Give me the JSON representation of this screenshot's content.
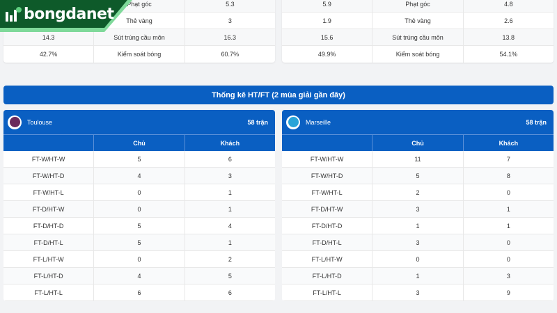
{
  "brand": {
    "name": "bongdanet"
  },
  "left_stats": [
    [
      "",
      "Phạt góc",
      "5.3"
    ],
    [
      "",
      "Thẻ vàng",
      "3"
    ],
    [
      "14.3",
      "Sút trúng cầu môn",
      "16.3"
    ],
    [
      "42.7%",
      "Kiểm soát bóng",
      "60.7%"
    ]
  ],
  "right_stats": [
    [
      "5.9",
      "Phạt góc",
      "4.8"
    ],
    [
      "1.9",
      "Thẻ vàng",
      "2.6"
    ],
    [
      "15.6",
      "Sút trúng cầu môn",
      "13.8"
    ],
    [
      "49.9%",
      "Kiểm soát bóng",
      "54.1%"
    ]
  ],
  "htft_title": "Thống kê HT/FT (2 mùa giải gần đây)",
  "columns": [
    "",
    "Chủ",
    "Khách"
  ],
  "teams": [
    {
      "name": "Toulouse",
      "matches": "58 trận",
      "logo_color": "#6b2a5c",
      "rows": [
        [
          "FT-W/HT-W",
          "5",
          "6"
        ],
        [
          "FT-W/HT-D",
          "4",
          "3"
        ],
        [
          "FT-W/HT-L",
          "0",
          "1"
        ],
        [
          "FT-D/HT-W",
          "0",
          "1"
        ],
        [
          "FT-D/HT-D",
          "5",
          "4"
        ],
        [
          "FT-D/HT-L",
          "5",
          "1"
        ],
        [
          "FT-L/HT-W",
          "0",
          "2"
        ],
        [
          "FT-L/HT-D",
          "4",
          "5"
        ],
        [
          "FT-L/HT-L",
          "6",
          "6"
        ]
      ]
    },
    {
      "name": "Marseille",
      "matches": "58 trận",
      "logo_color": "#2aa4d8",
      "rows": [
        [
          "FT-W/HT-W",
          "11",
          "7"
        ],
        [
          "FT-W/HT-D",
          "5",
          "8"
        ],
        [
          "FT-W/HT-L",
          "2",
          "0"
        ],
        [
          "FT-D/HT-W",
          "3",
          "1"
        ],
        [
          "FT-D/HT-D",
          "1",
          "1"
        ],
        [
          "FT-D/HT-L",
          "3",
          "0"
        ],
        [
          "FT-L/HT-W",
          "0",
          "0"
        ],
        [
          "FT-L/HT-D",
          "1",
          "3"
        ],
        [
          "FT-L/HT-L",
          "3",
          "9"
        ]
      ]
    }
  ],
  "colors": {
    "primary": "#0a5fc2",
    "brand_green": "#0e5a2a"
  }
}
